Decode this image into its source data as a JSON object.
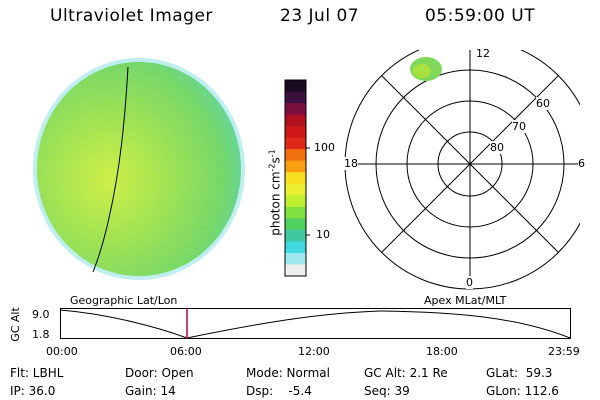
{
  "header": {
    "instrument": "Ultraviolet Imager",
    "date": "23 Jul 07",
    "time": "05:59:00 UT"
  },
  "colorbar": {
    "unit_label": "photon cm",
    "unit_exp1": "-2",
    "unit_mid": "s",
    "unit_exp2": "-1",
    "tick_100": "100",
    "tick_10": "10",
    "colors_top_to_bottom": [
      "#1a0a20",
      "#3a1040",
      "#7a1040",
      "#b01020",
      "#d01818",
      "#e02818",
      "#f07010",
      "#f8a010",
      "#f8e020",
      "#e8f030",
      "#c0f030",
      "#80e040",
      "#50d060",
      "#40c8a0",
      "#40d8e0",
      "#a0e8f0",
      "#f0f0f0"
    ]
  },
  "polar": {
    "top_label": "12",
    "left_label": "18",
    "right_label": "6",
    "bottom_label": "0",
    "lat_60": "60",
    "lat_70": "70",
    "lat_80": "80"
  },
  "timeline": {
    "axis_label": "GC Alt",
    "left_title": "Geographic Lat/Lon",
    "right_title": "Apex MLat/MLT",
    "y_top": "9.0",
    "y_bottom": "1.8",
    "x_ticks": [
      "00:00",
      "06:00",
      "12:00",
      "18:00",
      "23:59"
    ],
    "cursor_color": "#c00040"
  },
  "info": {
    "flt": "Flt: LBHL",
    "door": "Door: Open",
    "mode": "Mode: Normal",
    "gc_alt": "GC Alt: 2.1 Re",
    "glat": "GLat:  59.3",
    "ip": "IP: 36.0",
    "gain": "Gain: 14",
    "dsp": "Dsp:    -5.4",
    "seq": "Seq: 39",
    "glon": "GLon: 112.6"
  }
}
